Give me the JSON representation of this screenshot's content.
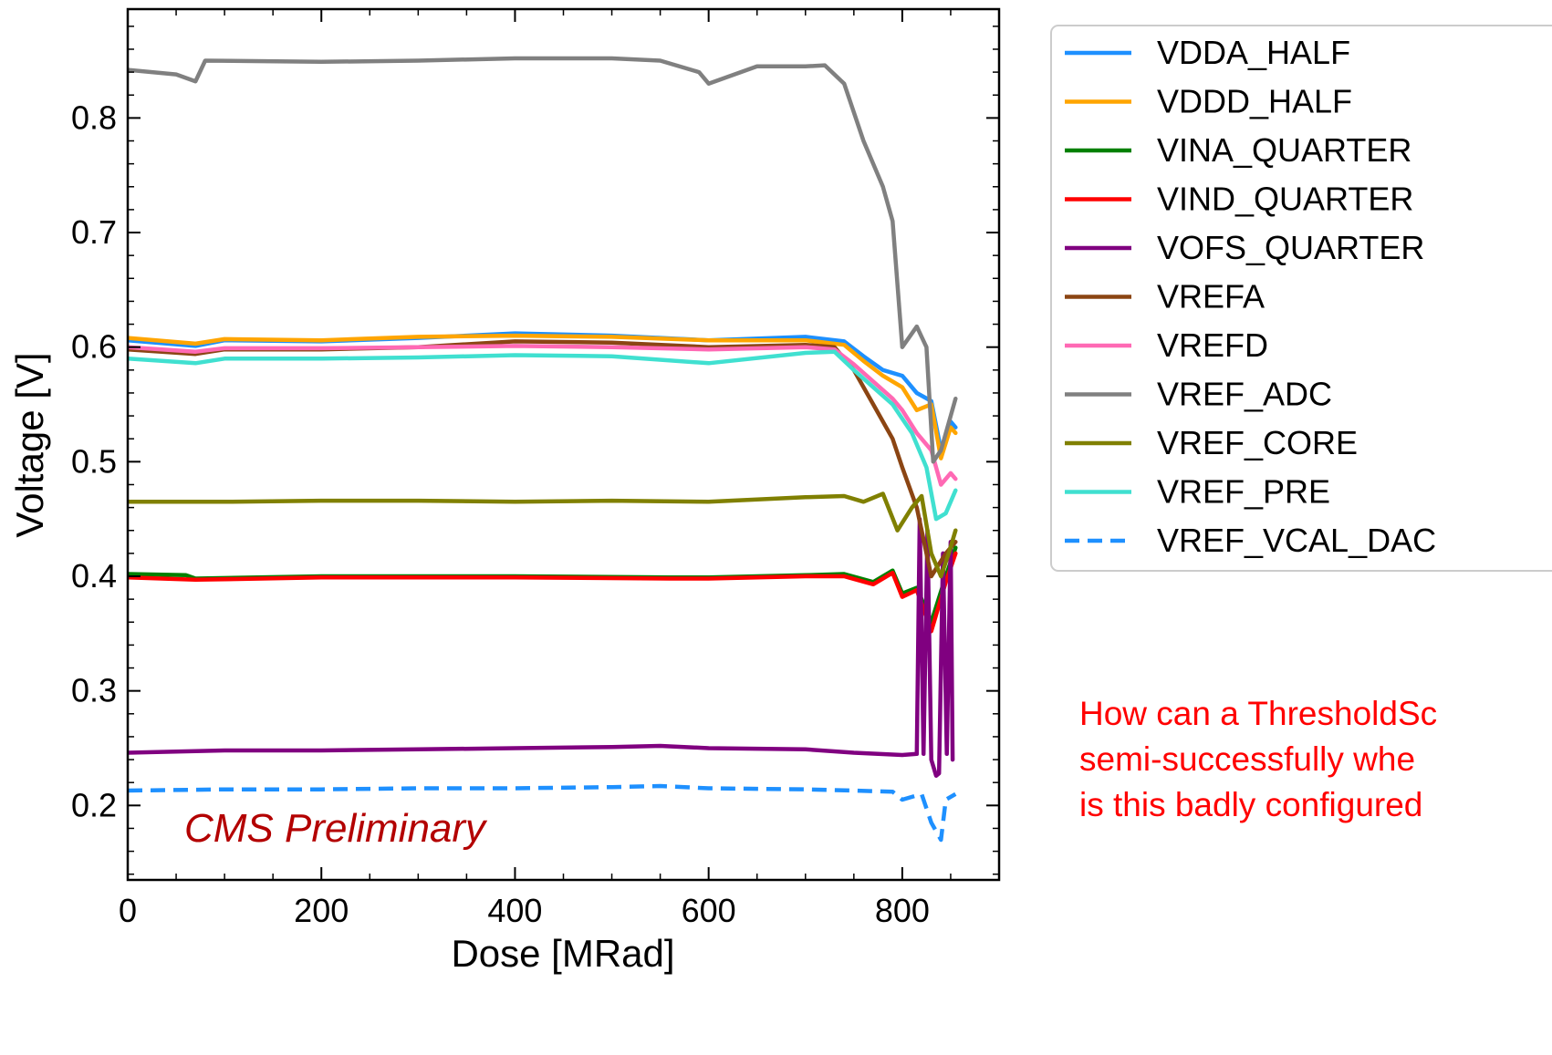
{
  "chart_data": {
    "type": "line",
    "title": "",
    "xlabel": "Dose [MRad]",
    "ylabel": "Voltage [V]",
    "xlim": [
      0,
      900
    ],
    "ylim": [
      0.135,
      0.895
    ],
    "x_ticks": [
      0,
      200,
      400,
      600,
      800
    ],
    "y_ticks": [
      0.2,
      0.3,
      0.4,
      0.5,
      0.6,
      0.7,
      0.8
    ],
    "legend_position": "right, outside plot area",
    "series": [
      {
        "name": "VDDA_HALF",
        "color": "#1e90ff",
        "style": "solid",
        "points": [
          [
            0,
            0.606
          ],
          [
            70,
            0.601
          ],
          [
            100,
            0.606
          ],
          [
            200,
            0.605
          ],
          [
            300,
            0.608
          ],
          [
            400,
            0.612
          ],
          [
            500,
            0.61
          ],
          [
            600,
            0.606
          ],
          [
            700,
            0.609
          ],
          [
            740,
            0.605
          ],
          [
            760,
            0.592
          ],
          [
            780,
            0.58
          ],
          [
            800,
            0.575
          ],
          [
            815,
            0.56
          ],
          [
            830,
            0.553
          ],
          [
            840,
            0.51
          ],
          [
            850,
            0.535
          ],
          [
            855,
            0.53
          ]
        ]
      },
      {
        "name": "VDDD_HALF",
        "color": "#ffa500",
        "style": "solid",
        "points": [
          [
            0,
            0.608
          ],
          [
            70,
            0.603
          ],
          [
            100,
            0.607
          ],
          [
            200,
            0.606
          ],
          [
            300,
            0.609
          ],
          [
            400,
            0.61
          ],
          [
            500,
            0.609
          ],
          [
            600,
            0.606
          ],
          [
            700,
            0.606
          ],
          [
            740,
            0.602
          ],
          [
            760,
            0.588
          ],
          [
            780,
            0.575
          ],
          [
            800,
            0.565
          ],
          [
            815,
            0.545
          ],
          [
            830,
            0.55
          ],
          [
            840,
            0.503
          ],
          [
            850,
            0.53
          ],
          [
            855,
            0.525
          ]
        ]
      },
      {
        "name": "VINA_QUARTER",
        "color": "#008000",
        "style": "solid",
        "points": [
          [
            0,
            0.402
          ],
          [
            60,
            0.401
          ],
          [
            70,
            0.398
          ],
          [
            200,
            0.4
          ],
          [
            400,
            0.4
          ],
          [
            560,
            0.399
          ],
          [
            600,
            0.399
          ],
          [
            700,
            0.401
          ],
          [
            740,
            0.402
          ],
          [
            770,
            0.395
          ],
          [
            790,
            0.405
          ],
          [
            800,
            0.385
          ],
          [
            815,
            0.39
          ],
          [
            830,
            0.36
          ],
          [
            845,
            0.4
          ],
          [
            855,
            0.425
          ]
        ]
      },
      {
        "name": "VIND_QUARTER",
        "color": "#ff0000",
        "style": "solid",
        "points": [
          [
            0,
            0.399
          ],
          [
            70,
            0.397
          ],
          [
            200,
            0.399
          ],
          [
            400,
            0.399
          ],
          [
            560,
            0.398
          ],
          [
            600,
            0.398
          ],
          [
            700,
            0.4
          ],
          [
            740,
            0.4
          ],
          [
            770,
            0.393
          ],
          [
            790,
            0.403
          ],
          [
            800,
            0.382
          ],
          [
            815,
            0.388
          ],
          [
            830,
            0.352
          ],
          [
            845,
            0.395
          ],
          [
            855,
            0.42
          ]
        ]
      },
      {
        "name": "VOFS_QUARTER",
        "color": "#800080",
        "style": "solid",
        "points": [
          [
            0,
            0.246
          ],
          [
            100,
            0.248
          ],
          [
            200,
            0.248
          ],
          [
            300,
            0.249
          ],
          [
            400,
            0.25
          ],
          [
            500,
            0.251
          ],
          [
            550,
            0.252
          ],
          [
            600,
            0.25
          ],
          [
            700,
            0.249
          ],
          [
            750,
            0.246
          ],
          [
            800,
            0.244
          ],
          [
            815,
            0.245
          ],
          [
            818,
            0.45
          ],
          [
            822,
            0.245
          ],
          [
            826,
            0.44
          ],
          [
            830,
            0.24
          ],
          [
            835,
            0.226
          ],
          [
            838,
            0.228
          ],
          [
            842,
            0.42
          ],
          [
            846,
            0.245
          ],
          [
            850,
            0.43
          ],
          [
            852,
            0.24
          ]
        ]
      },
      {
        "name": "VREFA",
        "color": "#8b4513",
        "style": "solid",
        "points": [
          [
            0,
            0.598
          ],
          [
            70,
            0.594
          ],
          [
            100,
            0.598
          ],
          [
            200,
            0.598
          ],
          [
            300,
            0.6
          ],
          [
            400,
            0.605
          ],
          [
            500,
            0.604
          ],
          [
            600,
            0.6
          ],
          [
            700,
            0.602
          ],
          [
            730,
            0.6
          ],
          [
            750,
            0.58
          ],
          [
            770,
            0.55
          ],
          [
            790,
            0.52
          ],
          [
            800,
            0.495
          ],
          [
            815,
            0.46
          ],
          [
            830,
            0.4
          ],
          [
            845,
            0.42
          ],
          [
            855,
            0.43
          ]
        ]
      },
      {
        "name": "VREFD",
        "color": "#ff69b4",
        "style": "solid",
        "points": [
          [
            0,
            0.6
          ],
          [
            70,
            0.596
          ],
          [
            100,
            0.599
          ],
          [
            200,
            0.599
          ],
          [
            300,
            0.6
          ],
          [
            400,
            0.601
          ],
          [
            500,
            0.6
          ],
          [
            600,
            0.598
          ],
          [
            700,
            0.6
          ],
          [
            730,
            0.598
          ],
          [
            750,
            0.585
          ],
          [
            770,
            0.57
          ],
          [
            790,
            0.555
          ],
          [
            800,
            0.545
          ],
          [
            815,
            0.525
          ],
          [
            830,
            0.51
          ],
          [
            840,
            0.48
          ],
          [
            850,
            0.49
          ],
          [
            855,
            0.485
          ]
        ]
      },
      {
        "name": "VREF_ADC",
        "color": "#808080",
        "style": "solid",
        "points": [
          [
            0,
            0.842
          ],
          [
            50,
            0.838
          ],
          [
            70,
            0.832
          ],
          [
            80,
            0.85
          ],
          [
            200,
            0.849
          ],
          [
            300,
            0.85
          ],
          [
            400,
            0.852
          ],
          [
            500,
            0.852
          ],
          [
            550,
            0.85
          ],
          [
            590,
            0.84
          ],
          [
            600,
            0.83
          ],
          [
            650,
            0.845
          ],
          [
            700,
            0.845
          ],
          [
            720,
            0.846
          ],
          [
            740,
            0.83
          ],
          [
            760,
            0.78
          ],
          [
            780,
            0.74
          ],
          [
            790,
            0.71
          ],
          [
            800,
            0.6
          ],
          [
            815,
            0.618
          ],
          [
            825,
            0.6
          ],
          [
            832,
            0.5
          ],
          [
            840,
            0.51
          ],
          [
            855,
            0.555
          ]
        ]
      },
      {
        "name": "VREF_CORE",
        "color": "#808000",
        "style": "solid",
        "points": [
          [
            0,
            0.465
          ],
          [
            100,
            0.465
          ],
          [
            200,
            0.466
          ],
          [
            300,
            0.466
          ],
          [
            400,
            0.465
          ],
          [
            500,
            0.466
          ],
          [
            600,
            0.465
          ],
          [
            700,
            0.469
          ],
          [
            740,
            0.47
          ],
          [
            760,
            0.465
          ],
          [
            780,
            0.472
          ],
          [
            795,
            0.44
          ],
          [
            810,
            0.46
          ],
          [
            820,
            0.47
          ],
          [
            830,
            0.42
          ],
          [
            840,
            0.4
          ],
          [
            848,
            0.42
          ],
          [
            855,
            0.44
          ]
        ]
      },
      {
        "name": "VREF_PRE",
        "color": "#40e0d0",
        "style": "solid",
        "points": [
          [
            0,
            0.59
          ],
          [
            70,
            0.586
          ],
          [
            100,
            0.59
          ],
          [
            200,
            0.59
          ],
          [
            300,
            0.591
          ],
          [
            400,
            0.593
          ],
          [
            500,
            0.592
          ],
          [
            600,
            0.586
          ],
          [
            700,
            0.595
          ],
          [
            730,
            0.596
          ],
          [
            750,
            0.58
          ],
          [
            770,
            0.565
          ],
          [
            790,
            0.55
          ],
          [
            810,
            0.525
          ],
          [
            825,
            0.495
          ],
          [
            835,
            0.45
          ],
          [
            845,
            0.455
          ],
          [
            855,
            0.475
          ]
        ]
      },
      {
        "name": "VREF_VCAL_DAC",
        "color": "#1e90ff",
        "style": "dashed",
        "points": [
          [
            0,
            0.213
          ],
          [
            100,
            0.214
          ],
          [
            200,
            0.214
          ],
          [
            300,
            0.215
          ],
          [
            400,
            0.215
          ],
          [
            500,
            0.216
          ],
          [
            550,
            0.217
          ],
          [
            600,
            0.215
          ],
          [
            700,
            0.214
          ],
          [
            750,
            0.213
          ],
          [
            790,
            0.212
          ],
          [
            800,
            0.205
          ],
          [
            820,
            0.21
          ],
          [
            830,
            0.185
          ],
          [
            840,
            0.17
          ],
          [
            845,
            0.205
          ],
          [
            855,
            0.21
          ]
        ]
      }
    ]
  },
  "watermark": {
    "text": "CMS Preliminary",
    "color": "#b30000"
  },
  "note": {
    "color": "#ff0000",
    "lines": [
      "How can a ThresholdSc",
      "semi-successfully whe",
      "is this badly configured"
    ]
  }
}
